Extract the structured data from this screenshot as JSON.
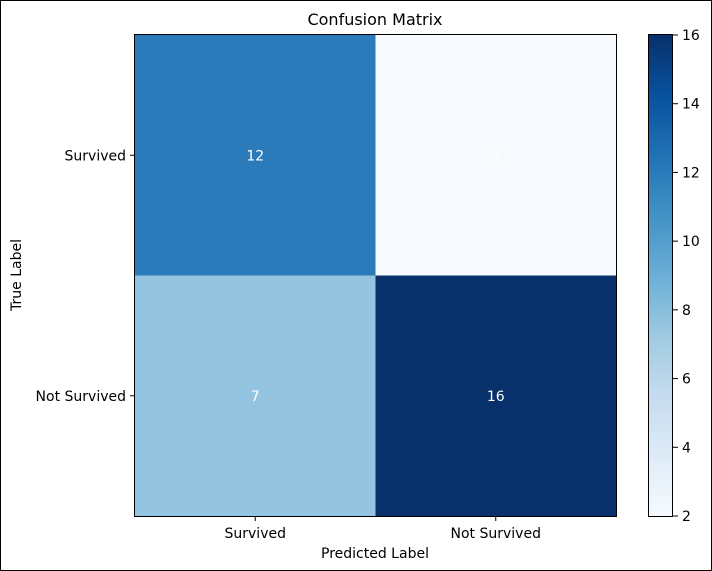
{
  "chart_data": {
    "type": "heatmap",
    "title": "Confusion Matrix",
    "xlabel": "Predicted Label",
    "ylabel": "True Label",
    "x_categories": [
      "Survived",
      "Not Survived"
    ],
    "y_categories": [
      "Survived",
      "Not Survived"
    ],
    "values": [
      [
        12,
        2
      ],
      [
        7,
        16
      ]
    ],
    "colormap": "Blues",
    "colorbar": {
      "min": 2,
      "max": 16,
      "ticks": [
        2,
        4,
        6,
        8,
        10,
        12,
        14,
        16
      ]
    },
    "cell_colors": [
      [
        "#2b7bba",
        "#f7fbff"
      ],
      [
        "#94c4df",
        "#08306b"
      ]
    ],
    "annotation_color": "#ffffff"
  }
}
